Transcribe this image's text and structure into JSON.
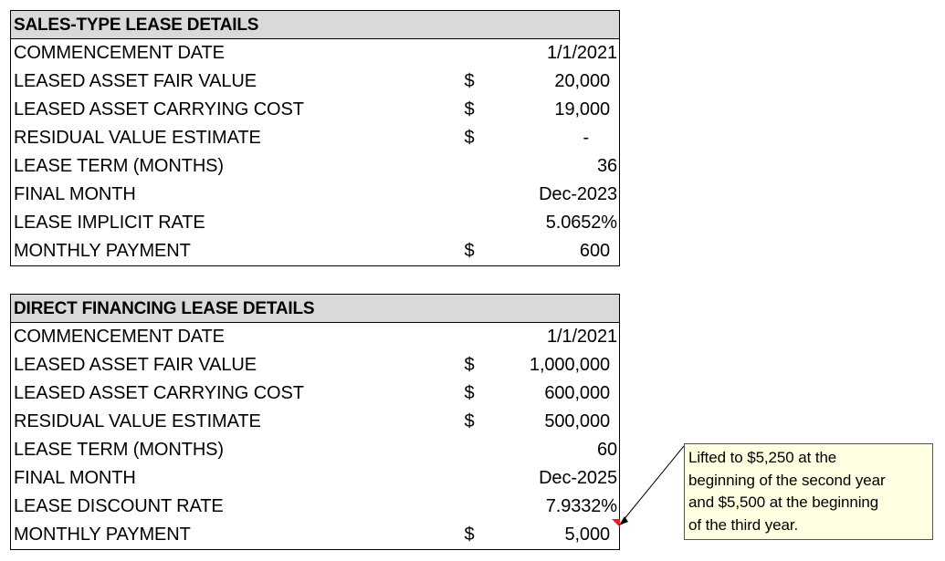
{
  "sales_type": {
    "header": "SALES-TYPE LEASE DETAILS",
    "rows": [
      {
        "label": "COMMENCEMENT DATE",
        "currency": "",
        "value": "1/1/2021"
      },
      {
        "label": "LEASED ASSET FAIR VALUE",
        "currency": "$",
        "value": "20,000"
      },
      {
        "label": "LEASED ASSET CARRYING COST",
        "currency": "$",
        "value": "19,000"
      },
      {
        "label": "RESIDUAL VALUE ESTIMATE",
        "currency": "$",
        "value": "-"
      },
      {
        "label": "LEASE TERM (MONTHS)",
        "currency": "",
        "value": "36"
      },
      {
        "label": "FINAL MONTH",
        "currency": "",
        "value": "Dec-2023"
      },
      {
        "label": "LEASE IMPLICIT RATE",
        "currency": "",
        "value": "5.0652%"
      },
      {
        "label": "MONTHLY PAYMENT",
        "currency": "$",
        "value": "600"
      }
    ]
  },
  "direct_financing": {
    "header": "DIRECT FINANCING LEASE DETAILS",
    "rows": [
      {
        "label": "COMMENCEMENT DATE",
        "currency": "",
        "value": "1/1/2021"
      },
      {
        "label": "LEASED ASSET FAIR VALUE",
        "currency": "$",
        "value": "1,000,000"
      },
      {
        "label": "LEASED ASSET CARRYING COST",
        "currency": "$",
        "value": "600,000"
      },
      {
        "label": "RESIDUAL VALUE ESTIMATE",
        "currency": "$",
        "value": "500,000"
      },
      {
        "label": "LEASE TERM (MONTHS)",
        "currency": "",
        "value": "60"
      },
      {
        "label": "FINAL MONTH",
        "currency": "",
        "value": "Dec-2025"
      },
      {
        "label": "LEASE DISCOUNT RATE",
        "currency": "",
        "value": "7.9332%"
      },
      {
        "label": "MONTHLY PAYMENT",
        "currency": "$",
        "value": "5,000"
      }
    ]
  },
  "comment": {
    "lines": [
      "Lifted to $5,250 at the",
      "beginning of the second year",
      "and $5,500 at the beginning",
      "of the third year."
    ],
    "indicator_color": "#e02020",
    "background_color": "#ffffe1"
  }
}
